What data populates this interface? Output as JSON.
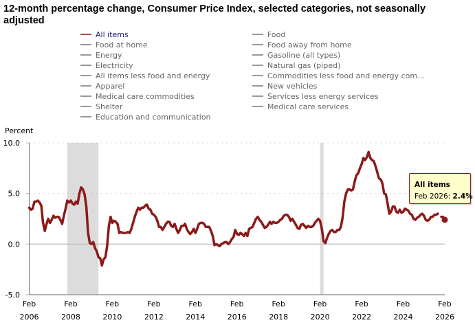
{
  "title": "12-month percentage change, Consumer Price Index, selected categories, not seasonally adjusted",
  "legend": {
    "left": [
      {
        "label": "All items",
        "active": true
      },
      {
        "label": "Food at home",
        "active": false
      },
      {
        "label": "Energy",
        "active": false
      },
      {
        "label": "Electricity",
        "active": false
      },
      {
        "label": "All items less food and energy",
        "active": false
      },
      {
        "label": "Apparel",
        "active": false
      },
      {
        "label": "Medical care commodities",
        "active": false
      },
      {
        "label": "Shelter",
        "active": false
      },
      {
        "label": "Education and communication",
        "active": false
      }
    ],
    "right": [
      {
        "label": "Food",
        "active": false
      },
      {
        "label": "Food away from home",
        "active": false
      },
      {
        "label": "Gasoline (all types)",
        "active": false
      },
      {
        "label": "Natural gas (piped)",
        "active": false
      },
      {
        "label": "Commodities less food and energy com...",
        "active": false
      },
      {
        "label": "New vehicles",
        "active": false
      },
      {
        "label": "Services less energy services",
        "active": false
      },
      {
        "label": "Medical care services",
        "active": false
      }
    ]
  },
  "colors": {
    "all_items_line": "#8b1a1a",
    "recession_band": "#dcdcdc",
    "tooltip_bg": "#ffffcc",
    "tooltip_border": "#8b1a1a"
  },
  "tooltip": {
    "series": "All items",
    "label": "Feb 2026:",
    "value": "2.4%"
  },
  "chart_data": {
    "type": "line",
    "title": "12-month percentage change, Consumer Price Index, selected categories, not seasonally adjusted",
    "ylabel": "Percent",
    "xlabel": "",
    "ylim": [
      -5.0,
      10.0
    ],
    "yticks": [
      "10.0",
      "5.0",
      "0.0",
      "-5.0"
    ],
    "ytick_values": [
      10,
      5,
      0,
      -5
    ],
    "xticks": [
      {
        "month": "Feb",
        "year": "2006"
      },
      {
        "month": "Feb",
        "year": "2008"
      },
      {
        "month": "Feb",
        "year": "2010"
      },
      {
        "month": "Feb",
        "year": "2012"
      },
      {
        "month": "Feb",
        "year": "2014"
      },
      {
        "month": "Feb",
        "year": "2016"
      },
      {
        "month": "Feb",
        "year": "2018"
      },
      {
        "month": "Feb",
        "year": "2020"
      },
      {
        "month": "Feb",
        "year": "2022"
      },
      {
        "month": "Feb",
        "year": "2024"
      },
      {
        "month": "Feb",
        "year": "2026"
      }
    ],
    "x_start": "2006-02",
    "x_end": "2026-02",
    "grid": "dotted horizontal",
    "recessions": [
      {
        "start": "2007-12",
        "end": "2009-06"
      },
      {
        "start": "2020-02",
        "end": "2020-04"
      }
    ],
    "series": [
      {
        "name": "All items",
        "start": "2006-02",
        "frequency": "monthly",
        "values": [
          3.6,
          3.4,
          3.5,
          4.2,
          4.2,
          4.3,
          4.1,
          3.8,
          2.1,
          1.3,
          2.0,
          2.5,
          2.1,
          2.4,
          2.8,
          2.6,
          2.7,
          2.7,
          2.4,
          2.0,
          2.8,
          3.5,
          4.3,
          4.1,
          4.3,
          4.0,
          3.9,
          4.2,
          4.0,
          5.0,
          5.6,
          5.4,
          4.9,
          3.7,
          1.1,
          0.1,
          0.0,
          0.2,
          -0.4,
          -0.7,
          -1.3,
          -1.4,
          -2.1,
          -1.5,
          -1.3,
          -0.2,
          1.8,
          2.7,
          2.1,
          2.3,
          2.2,
          2.0,
          1.1,
          1.2,
          1.1,
          1.1,
          1.1,
          1.2,
          1.1,
          1.5,
          2.1,
          2.7,
          3.2,
          3.6,
          3.4,
          3.6,
          3.6,
          3.8,
          3.9,
          3.5,
          3.4,
          3.0,
          2.9,
          2.7,
          2.3,
          1.7,
          1.7,
          1.4,
          1.7,
          2.0,
          2.2,
          2.2,
          1.8,
          1.7,
          2.0,
          1.5,
          1.1,
          1.4,
          1.8,
          1.8,
          2.0,
          1.5,
          1.2,
          1.0,
          1.2,
          1.5,
          1.1,
          1.5,
          2.0,
          2.1,
          2.1,
          2.0,
          1.7,
          1.7,
          1.7,
          1.3,
          0.8,
          -0.1,
          0.0,
          -0.1,
          -0.2,
          0.0,
          0.1,
          0.2,
          0.2,
          0.0,
          0.2,
          0.5,
          0.7,
          1.4,
          1.0,
          0.9,
          1.1,
          1.0,
          0.8,
          1.1,
          0.8,
          1.5,
          1.6,
          1.7,
          2.1,
          2.5,
          2.7,
          2.4,
          2.2,
          1.9,
          1.6,
          1.7,
          1.9,
          2.2,
          2.0,
          2.2,
          2.1,
          2.1,
          2.2,
          2.4,
          2.5,
          2.8,
          2.9,
          2.9,
          2.7,
          2.3,
          2.5,
          2.2,
          1.9,
          1.6,
          1.5,
          1.9,
          2.0,
          1.8,
          1.6,
          1.8,
          1.7,
          1.7,
          1.8,
          2.1,
          2.3,
          2.5,
          2.3,
          1.5,
          0.3,
          0.1,
          0.6,
          1.0,
          1.3,
          1.4,
          1.2,
          1.2,
          1.4,
          1.4,
          1.7,
          2.6,
          4.2,
          5.0,
          5.4,
          5.4,
          5.3,
          5.4,
          6.2,
          6.8,
          7.0,
          7.5,
          7.9,
          8.5,
          8.3,
          8.6,
          9.1,
          8.5,
          8.3,
          8.2,
          7.7,
          7.1,
          6.5,
          6.4,
          6.0,
          5.0,
          4.9,
          4.0,
          3.0,
          3.2,
          3.7,
          3.7,
          3.2,
          3.1,
          3.4,
          3.1,
          3.2,
          3.5,
          3.4,
          3.3,
          3.0,
          2.9,
          2.5,
          2.4,
          2.6,
          2.7,
          2.9,
          3.0,
          2.8,
          2.4,
          2.3,
          2.4,
          2.7,
          2.7,
          2.9,
          2.9,
          3.0,
          null,
          2.7,
          2.7,
          2.4
        ]
      }
    ],
    "highlighted_point": {
      "x": "2026-02",
      "y": 2.4
    },
    "legend_position": "top"
  }
}
